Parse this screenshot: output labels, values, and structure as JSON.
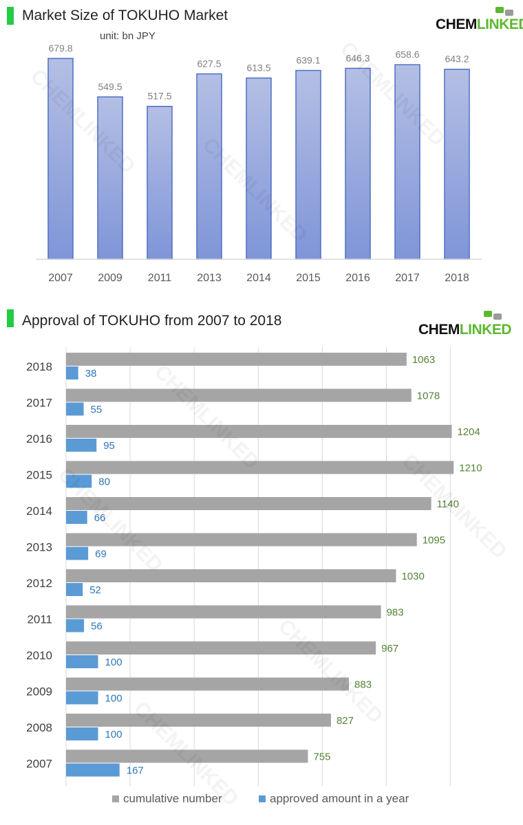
{
  "logo": {
    "text_left": "CHEM",
    "text_right": "LINKED",
    "accent_color": "#5cb82e"
  },
  "chart_data": [
    {
      "type": "bar",
      "title": "Market Size of TOKUHO Market",
      "subtitle": "unit: bn JPY",
      "categories": [
        "2007",
        "2009",
        "2011",
        "2013",
        "2014",
        "2015",
        "2016",
        "2017",
        "2018"
      ],
      "values": [
        679.8,
        549.5,
        517.5,
        627.5,
        613.5,
        639.1,
        646.3,
        658.6,
        643.2
      ],
      "value_labels": [
        "679.8",
        "549.5",
        "517.5",
        "627.5",
        "613.5",
        "639.1",
        "646.3",
        "658.6",
        "643.2"
      ],
      "ylim": [
        0,
        700
      ],
      "grid": false,
      "colors": {
        "bar_top": "#b4bfe4",
        "bar_bottom": "#7f95d8",
        "bar_border": "#4f6fc4",
        "label": "#7f7f7f"
      }
    },
    {
      "type": "bar",
      "orientation": "horizontal",
      "title": "Approval of TOKUHO from 2007 to 2018",
      "categories": [
        "2018",
        "2017",
        "2016",
        "2015",
        "2014",
        "2013",
        "2012",
        "2011",
        "2010",
        "2009",
        "2008",
        "2007"
      ],
      "series": [
        {
          "name": "cumulative number",
          "color": "#a5a5a5",
          "label_color": "#548235",
          "values": [
            1063,
            1078,
            1204,
            1210,
            1140,
            1095,
            1030,
            983,
            967,
            883,
            827,
            755
          ],
          "value_labels": [
            "1063",
            "1078",
            "1204",
            "1210",
            "1140",
            "1095",
            "1030",
            "983",
            "967",
            "883",
            "827",
            "755"
          ]
        },
        {
          "name": "approved amount in a year",
          "color": "#5b9bd5",
          "label_color": "#2e75b6",
          "values": [
            38,
            55,
            95,
            80,
            66,
            69,
            52,
            56,
            100,
            100,
            100,
            167
          ],
          "value_labels": [
            "38",
            "55",
            "95",
            "80",
            "66",
            "69",
            "52",
            "56",
            "100",
            "100",
            "100",
            "167"
          ]
        }
      ],
      "xlim": [
        0,
        1200
      ],
      "grid": true,
      "legend_position": "bottom"
    }
  ]
}
